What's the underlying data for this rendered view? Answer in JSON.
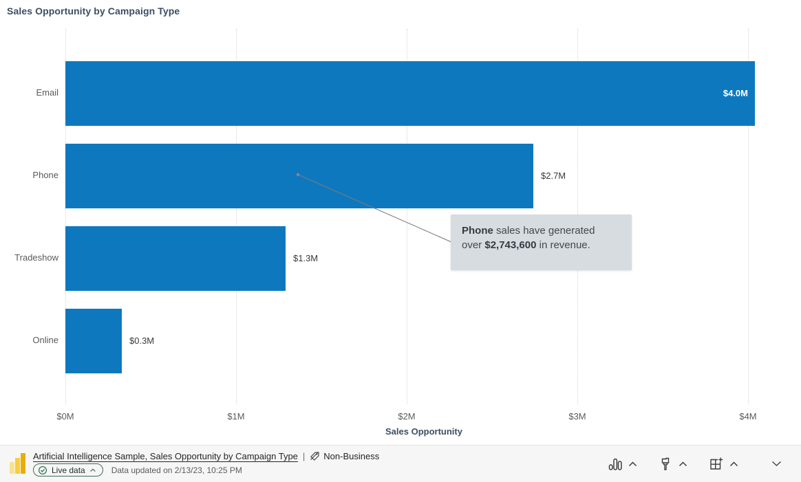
{
  "title": "Sales Opportunity by Campaign Type",
  "chart_data": {
    "type": "bar",
    "orientation": "horizontal",
    "title": "Sales Opportunity by Campaign Type",
    "categories": [
      "Email",
      "Phone",
      "Tradeshow",
      "Online"
    ],
    "values": [
      4.04,
      2.74,
      1.29,
      0.33
    ],
    "value_labels": [
      "$4.0M",
      "$2.7M",
      "$1.3M",
      "$0.3M"
    ],
    "label_inside": [
      true,
      false,
      false,
      false
    ],
    "unit": "USD millions",
    "xlabel": "Sales Opportunity",
    "x_ticks": [
      "$0M",
      "$1M",
      "$2M",
      "$3M",
      "$4M"
    ],
    "x_tick_values": [
      0,
      1,
      2,
      3,
      4
    ],
    "xlim": [
      0,
      4
    ],
    "grid": "vertical-dotted",
    "legend": "none",
    "bar_color": "#0E78BE"
  },
  "tooltip": {
    "bold1": "Phone",
    "text1": " sales have generated over ",
    "bold2": "$2,743,600",
    "text2": " in revenue."
  },
  "footer": {
    "source_link": "Artificial Intelligence Sample, Sales Opportunity by Campaign Type",
    "separator": "|",
    "sensitivity_label": "Non-Business",
    "live_badge": "Live data",
    "updated_text": "Data updated on 2/13/23, 10:25 PM",
    "toolbar_icons": [
      "bar-chart-icon",
      "paint-brush-icon",
      "add-visual-icon",
      "collapse-chevron-icon"
    ]
  },
  "colors": {
    "bar": "#0E78BE",
    "tooltip_bg": "#D7DCE0",
    "title_text": "#3B4E63",
    "logo_yellow": "#F2C811",
    "live_pill_border": "#3F6B58"
  }
}
